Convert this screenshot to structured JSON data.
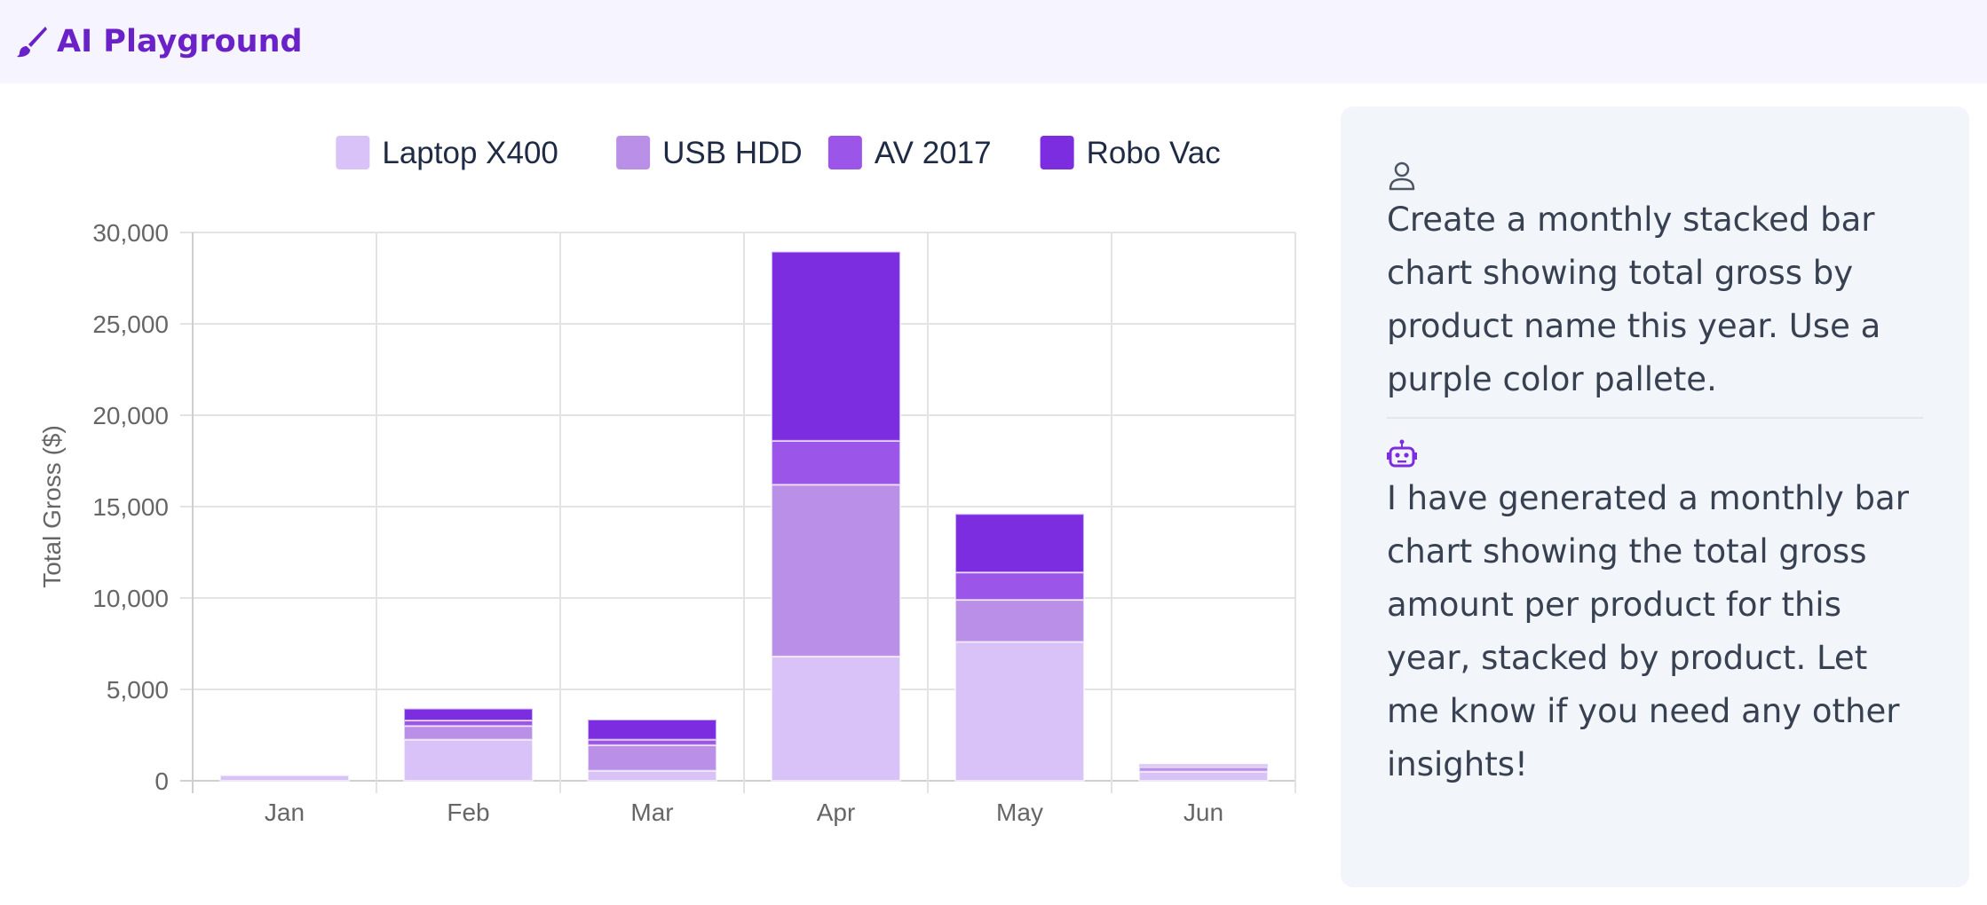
{
  "app": {
    "title": "AI Playground",
    "brand_color": "#6b21c8",
    "brand_icon": "paintbrush-icon"
  },
  "chat": {
    "messages": [
      {
        "role": "user",
        "icon": "user-icon",
        "text": "Create a monthly stacked bar chart showing total gross by product name this year. Use a purple color pallete."
      },
      {
        "role": "assistant",
        "icon": "robot-icon",
        "text": "I have generated a monthly bar chart showing the total gross amount per product for this year, stacked by product. Let me know if you need any other insights!"
      }
    ]
  },
  "chart_data": {
    "type": "bar",
    "stacked": true,
    "title": "",
    "xlabel": "",
    "ylabel": "Total Gross ($)",
    "ylim": [
      0,
      30000
    ],
    "yticks": [
      "0",
      "5,000",
      "10,000",
      "15,000",
      "20,000",
      "25,000",
      "30,000"
    ],
    "categories": [
      "Jan",
      "Feb",
      "Mar",
      "Apr",
      "May",
      "Jun"
    ],
    "legend_position": "top",
    "grid": true,
    "series": [
      {
        "name": "Laptop X400",
        "color": "#d8c2f7",
        "values": [
          300,
          2250,
          550,
          6800,
          7600,
          500
        ]
      },
      {
        "name": "USB HDD",
        "color": "#b98fe8",
        "values": [
          0,
          750,
          1400,
          9400,
          2300,
          250
        ]
      },
      {
        "name": "AV 2017",
        "color": "#9b55e9",
        "values": [
          0,
          300,
          300,
          2400,
          1500,
          100
        ]
      },
      {
        "name": "Robo Vac",
        "color": "#7c2de0",
        "values": [
          0,
          650,
          1100,
          10350,
          3200,
          50
        ]
      }
    ]
  }
}
